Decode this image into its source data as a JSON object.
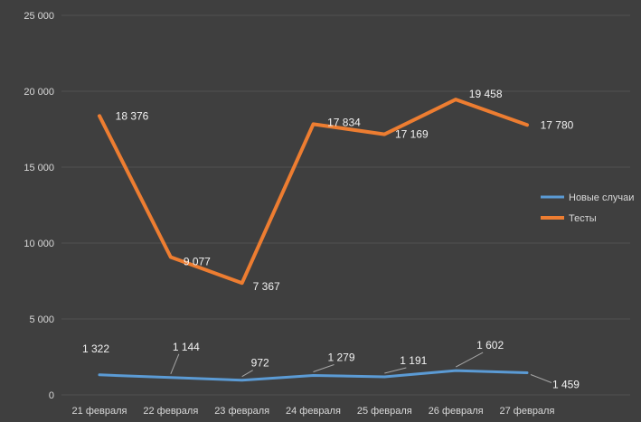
{
  "chart_data": {
    "type": "line",
    "categories": [
      "21 февраля",
      "22 февраля",
      "23 февраля",
      "24 февраля",
      "25 февраля",
      "26 февраля",
      "27 февраля"
    ],
    "series": [
      {
        "name": "Новые случаи",
        "color": "#5B9BD5",
        "values": [
          1322,
          1144,
          972,
          1279,
          1191,
          1602,
          1459
        ]
      },
      {
        "name": "Тесты",
        "color": "#ED7D31",
        "values": [
          18376,
          9077,
          7367,
          17834,
          17169,
          19458,
          17780
        ]
      }
    ],
    "title": "",
    "xlabel": "",
    "ylabel": "",
    "ylim": [
      0,
      25000
    ],
    "ytick_step": 5000,
    "ytick_labels": [
      "0",
      "5 000",
      "10 000",
      "15 000",
      "20 000",
      "25 000"
    ],
    "grid": true,
    "legend_position": "right-middle",
    "data_labels": true,
    "colors": {
      "background": "#3F3F3F",
      "gridline": "#525252",
      "axis_label": "#D9D9D9",
      "data_label": "#F2F2F2",
      "legend_text": "#D9D9D9",
      "leader_line": "#A6A6A6"
    }
  }
}
